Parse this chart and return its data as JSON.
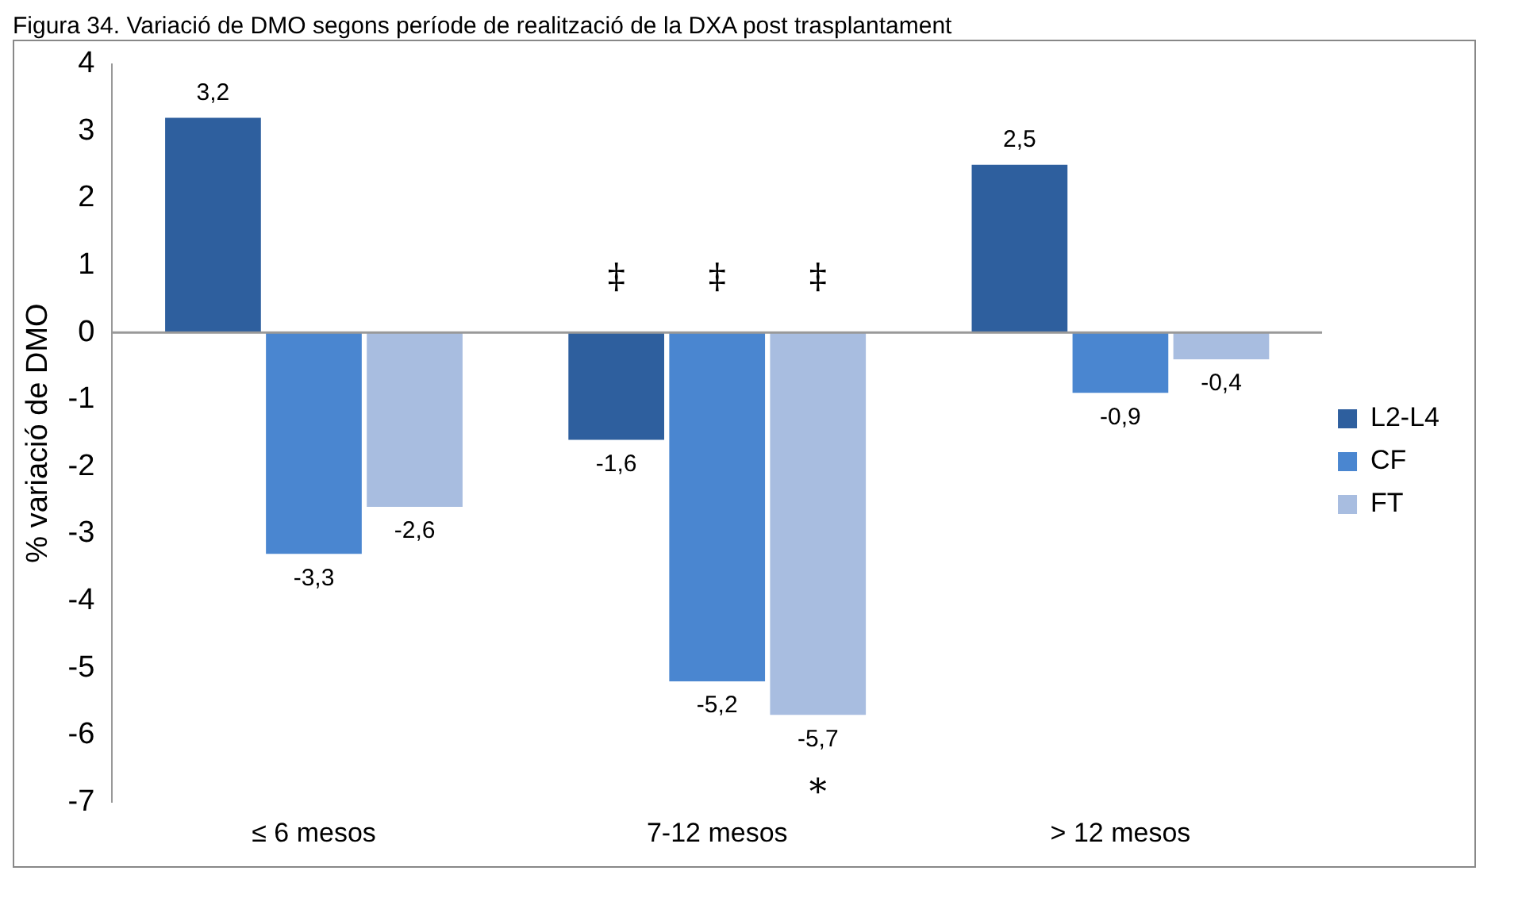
{
  "chart_data": {
    "type": "bar",
    "title": "Figura 34. Variació de DMO segons període de realització de la DXA post trasplantament",
    "ylabel": "% variació de DMO",
    "categories": [
      "≤ 6 mesos",
      "7-12 mesos",
      "> 12 mesos"
    ],
    "series": [
      {
        "name": "L2-L4",
        "color": "#2e5f9e",
        "values": [
          3.2,
          -1.6,
          2.5
        ],
        "value_labels": [
          "3,2",
          "-1,6",
          "2,5"
        ]
      },
      {
        "name": "CF",
        "color": "#4a86d0",
        "values": [
          -3.3,
          -5.2,
          -0.9
        ],
        "value_labels": [
          "-3,3",
          "-5,2",
          "-0,9"
        ]
      },
      {
        "name": "FT",
        "color": "#a8bde0",
        "values": [
          -2.6,
          -5.7,
          -0.4
        ],
        "value_labels": [
          "-2,6",
          "-5,7",
          "-0,4"
        ]
      }
    ],
    "ref_lines": [
      {
        "axis": "y",
        "value": 0,
        "color": "#999999"
      }
    ],
    "ylim": [
      -7,
      4
    ],
    "yticks": [
      -7,
      -6,
      -5,
      -4,
      -3,
      -2,
      -1,
      0,
      1,
      2,
      3,
      4
    ],
    "grid": false,
    "legend": "right",
    "annotations": [
      "‡",
      "‡",
      "‡",
      "*"
    ]
  }
}
